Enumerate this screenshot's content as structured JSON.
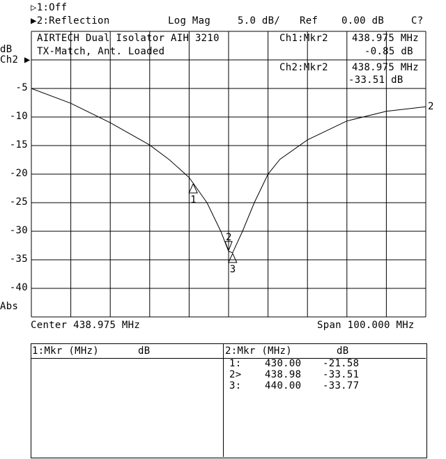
{
  "header": {
    "channel1_status": "▷1:Off",
    "channel2_status": "▶2:Reflection",
    "format": "Log Mag",
    "scale": "5.0 dB/",
    "ref_label": "Ref",
    "ref_value": "0.00 dB",
    "cal_status": "C?"
  },
  "annotation": {
    "title_line1": "AIRTECH Dual Isolator AIH 3210",
    "title_line2": "TX-Match, Ant. Loaded",
    "ch1_marker_label": "Ch1:Mkr2",
    "ch1_marker_freq": "438.975 MHz",
    "ch1_marker_value": "-0.85 dB",
    "ch2_marker_label": "Ch2:Mkr2",
    "ch2_marker_freq": "438.975 MHz",
    "ch2_marker_value": "-33.51 dB"
  },
  "axis": {
    "unit_label": "dB",
    "channel_label": "Ch2 ▶",
    "abs_label": "Abs",
    "y_ticks": [
      "-5",
      "-10",
      "-15",
      "-20",
      "-25",
      "-30",
      "-35",
      "-40"
    ],
    "center": "Center 438.975 MHz",
    "span": "Span 100.000 MHz",
    "trace_end_label": "2"
  },
  "chart_data": {
    "type": "line",
    "xlim": [
      388.975,
      488.975
    ],
    "ylim": [
      -45,
      5
    ],
    "grid": true,
    "x_unit": "MHz",
    "y_unit": "dB",
    "series": [
      {
        "points": [
          [
            388.975,
            -5.0
          ],
          [
            398.975,
            -7.6
          ],
          [
            408.975,
            -11.0
          ],
          [
            418.975,
            -14.9
          ],
          [
            424.0,
            -17.5
          ],
          [
            428.975,
            -20.6
          ],
          [
            430.0,
            -21.58
          ],
          [
            433.5,
            -25.0
          ],
          [
            437.0,
            -30.0
          ],
          [
            438.98,
            -33.51
          ],
          [
            440.0,
            -33.77
          ],
          [
            442.5,
            -30.0
          ],
          [
            445.5,
            -25.0
          ],
          [
            448.975,
            -20.0
          ],
          [
            452.0,
            -17.4
          ],
          [
            458.975,
            -14.0
          ],
          [
            468.975,
            -10.7
          ],
          [
            478.975,
            -9.0
          ],
          [
            488.975,
            -8.2
          ]
        ]
      }
    ],
    "markers": [
      {
        "id": "1",
        "freq": 430.0,
        "value": -21.58,
        "active": false
      },
      {
        "id": "2",
        "freq": 438.98,
        "value": -33.51,
        "active": true
      },
      {
        "id": "3",
        "freq": 440.0,
        "value": -33.77,
        "active": false
      }
    ]
  },
  "marker_table": {
    "ch1_header_freq": "1:Mkr (MHz)",
    "ch1_header_db": "dB",
    "ch2_header_freq": "2:Mkr (MHz)",
    "ch2_header_db": "dB",
    "ch2_rows": [
      {
        "id": "1:",
        "freq": "430.00",
        "db": "-21.58"
      },
      {
        "id": "2>",
        "freq": "438.98",
        "db": "-33.51"
      },
      {
        "id": "3:",
        "freq": "440.00",
        "db": "-33.77"
      }
    ]
  }
}
